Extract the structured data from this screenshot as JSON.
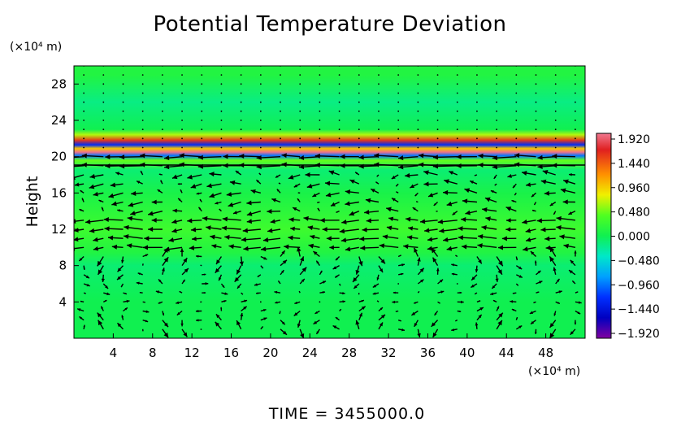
{
  "chart_data": {
    "type": "heatmap",
    "title": "Potential Temperature Deviation",
    "ylabel": "Height",
    "y_unit": "(×10⁴ m)",
    "x_unit": "(×10⁴ m)",
    "xlim": [
      0,
      52
    ],
    "ylim": [
      0,
      30
    ],
    "xticks": [
      4,
      8,
      12,
      16,
      20,
      24,
      28,
      32,
      36,
      40,
      44,
      48
    ],
    "yticks": [
      4,
      8,
      12,
      16,
      20,
      24,
      28
    ],
    "colorbar": {
      "ticks": [
        "1.920",
        "1.440",
        "0.960",
        "0.480",
        "0.000",
        "−0.480",
        "−0.960",
        "−1.440",
        "−1.920"
      ],
      "range": [
        -1.92,
        1.92
      ]
    },
    "field_bands": [
      {
        "y": 29,
        "value": 0.1
      },
      {
        "y": 26,
        "value": -0.15
      },
      {
        "y": 23,
        "value": 0.0
      },
      {
        "y": 22.4,
        "value": 0.6
      },
      {
        "y": 21.8,
        "value": 1.5
      },
      {
        "y": 21.3,
        "value": -1.2
      },
      {
        "y": 20.9,
        "value": 0.9
      },
      {
        "y": 20.5,
        "value": 1.9
      },
      {
        "y": 20.1,
        "value": -0.9
      },
      {
        "y": 19.6,
        "value": 0.4
      },
      {
        "y": 18.5,
        "value": -0.1
      },
      {
        "y": 16,
        "value": 0.05
      },
      {
        "y": 12,
        "value": 0.25
      },
      {
        "y": 9.5,
        "value": 0.1
      },
      {
        "y": 8,
        "value": -0.1
      },
      {
        "y": 4,
        "value": 0.0
      },
      {
        "y": 0,
        "value": 0.0
      }
    ],
    "vector_field": "horizontal velocity arrows across domain; strong westward flow near heights 19-20 and 11-12"
  },
  "footer": {
    "time_label": "TIME = 3455000.0"
  },
  "colors": {
    "background": "#ffffff",
    "frame": "#000000",
    "arrow": "#000000"
  }
}
